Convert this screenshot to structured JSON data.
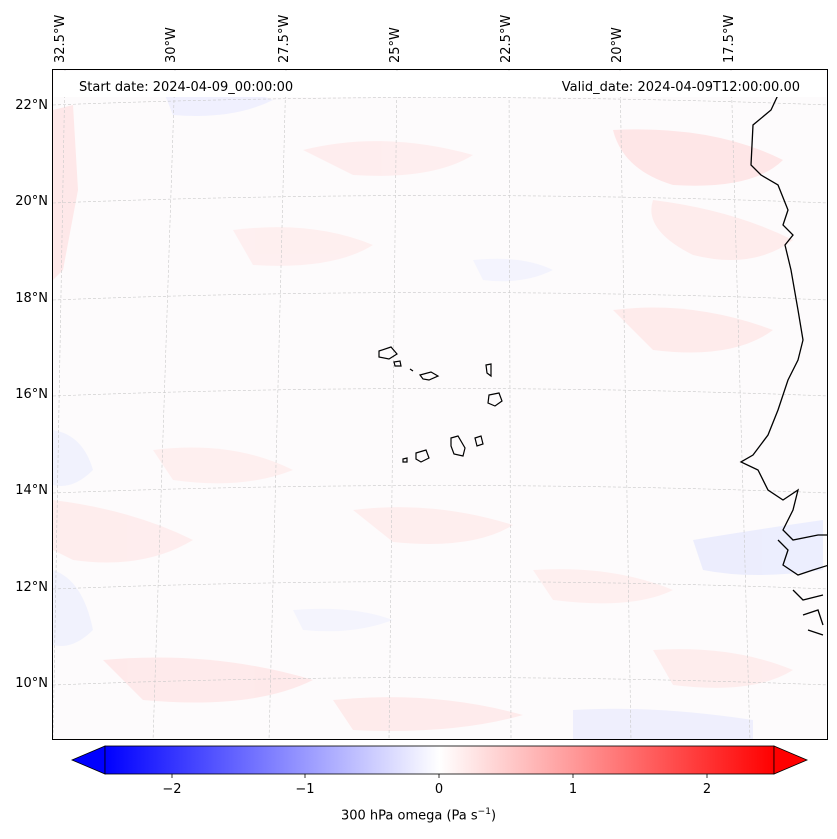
{
  "map": {
    "start_date": "Start date: 2024-04-09_00:00:00",
    "valid_date": "Valid_date: 2024-04-09T12:00:00.00",
    "lon_labels": [
      "32.5°W",
      "30°W",
      "27.5°W",
      "25°W",
      "22.5°W",
      "20°W",
      "17.5°W"
    ],
    "lat_labels": [
      "22°N",
      "20°N",
      "18°N",
      "16°N",
      "14°N",
      "12°N",
      "10°N"
    ],
    "colorbar": {
      "title": "300 hPa omega (Pa s",
      "title_sup": "−1",
      "title_end": ")",
      "ticks": [
        "−2",
        "−1",
        "0",
        "1",
        "2"
      ],
      "range": [
        -2.5,
        2.5
      ],
      "extend": "both",
      "colors": {
        "negative": "#0000ff",
        "zero": "#ffffff",
        "positive": "#ff0000"
      }
    },
    "colors": {
      "coastline": "#000000",
      "gridline": "#bbbbbb",
      "background": "#fdfbfc"
    }
  }
}
